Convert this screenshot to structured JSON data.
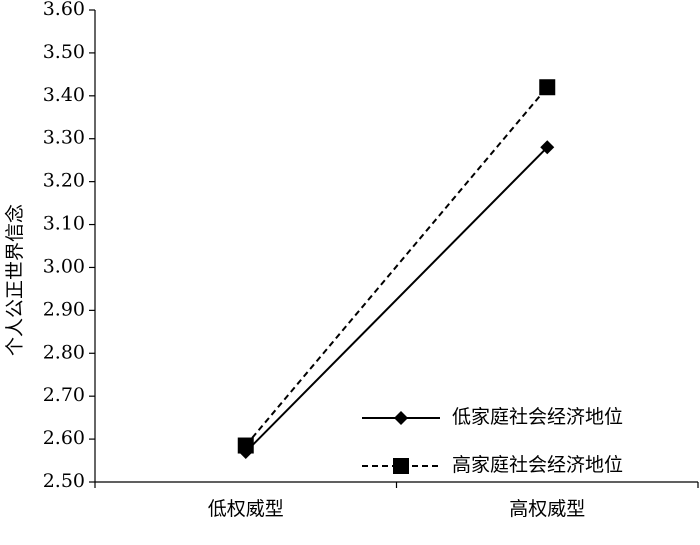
{
  "chart_data": {
    "type": "line",
    "y_label": "个人公正世界信念",
    "categories": [
      "低权威型",
      "高权威型"
    ],
    "series": [
      {
        "name": "低家庭社会经济地位",
        "color": "#000000",
        "dash": "solid",
        "marker": "diamond",
        "values": [
          2.57,
          3.28
        ]
      },
      {
        "name": "高家庭社会经济地位",
        "color": "#000000",
        "dash": "dashed",
        "marker": "square",
        "values": [
          2.585,
          3.42
        ]
      }
    ],
    "ylim": [
      2.5,
      3.6
    ],
    "yticks": [
      {
        "value": 2.5,
        "label": "2.50"
      },
      {
        "value": 2.6,
        "label": "2.60"
      },
      {
        "value": 2.7,
        "label": "2.70"
      },
      {
        "value": 2.8,
        "label": "2.80"
      },
      {
        "value": 2.9,
        "label": "2.90"
      },
      {
        "value": 3.0,
        "label": "3.00"
      },
      {
        "value": 3.1,
        "label": "3.10"
      },
      {
        "value": 3.2,
        "label": "3.20"
      },
      {
        "value": 3.3,
        "label": "3.30"
      },
      {
        "value": 3.4,
        "label": "3.40"
      },
      {
        "value": 3.5,
        "label": "3.50"
      },
      {
        "value": 3.6,
        "label": "3.60"
      }
    ],
    "legend": "lower right",
    "grid": false
  }
}
